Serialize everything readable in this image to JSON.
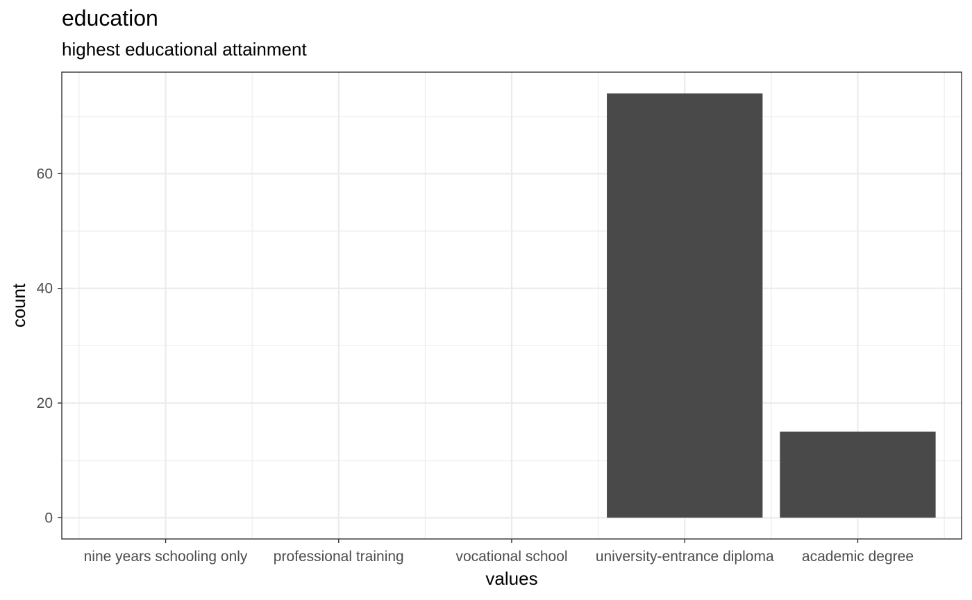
{
  "chart_data": {
    "type": "bar",
    "title": "education",
    "subtitle": "highest educational attainment",
    "xlabel": "values",
    "ylabel": "count",
    "categories": [
      "nine years schooling only",
      "professional training",
      "vocational school",
      "university-entrance diploma",
      "academic degree"
    ],
    "values": [
      0,
      0,
      0,
      74,
      15
    ],
    "ylim": [
      -3.7,
      77.7
    ],
    "yticks": [
      0,
      20,
      40,
      60
    ],
    "grid": true,
    "bar_color": "#494949",
    "grid_color": "#ebebeb",
    "panel_border_color": "#333333"
  }
}
